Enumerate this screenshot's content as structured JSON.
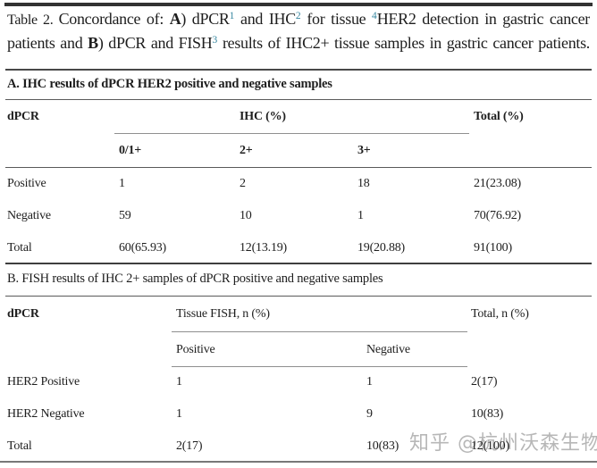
{
  "colors": {
    "text": "#1e1e1e",
    "superscript": "#3787a0",
    "watermark": "#ababab"
  },
  "title": {
    "line1": [
      "Table 2. ",
      "Concordance of: ",
      "A",
      ") dPCR",
      "1",
      " and IHC",
      "2",
      " for tissue ",
      "4",
      "HER2 detection in gastric cancer"
    ],
    "line2": [
      "patients and ",
      "B",
      ") dPCR and FISH",
      "3",
      " results of IHC2+ tissue samples in gastric cancer patients."
    ]
  },
  "table_a": {
    "section_header": "A. IHC results of dPCR HER2 positive and negative samples",
    "col_headers": {
      "col1": "dPCR",
      "group": "IHC (%)",
      "total": "Total (%)"
    },
    "sub_headers": [
      "0/1+",
      "2+",
      "3+"
    ],
    "rows": [
      [
        "Positive",
        "1",
        "2",
        "18",
        "21(23.08)"
      ],
      [
        "Negative",
        "59",
        "10",
        "1",
        "70(76.92)"
      ],
      [
        "Total",
        "60(65.93)",
        "12(13.19)",
        "19(20.88)",
        "91(100)"
      ]
    ]
  },
  "table_b": {
    "section_header": "B. FISH results of IHC 2+ samples of dPCR positive and negative samples",
    "col_headers": {
      "col1": "dPCR",
      "group": "Tissue FISH, n (%)",
      "total": "Total, n (%)"
    },
    "sub_headers": [
      "Positive",
      "Negative"
    ],
    "rows": [
      [
        "HER2 Positive",
        "1",
        "1",
        "2(17)"
      ],
      [
        "HER2 Negative",
        "1",
        "9",
        "10(83)"
      ],
      [
        "Total",
        "2(17)",
        "10(83)",
        "12(100)"
      ]
    ]
  },
  "watermark": "知乎 @杭州沃森生物"
}
